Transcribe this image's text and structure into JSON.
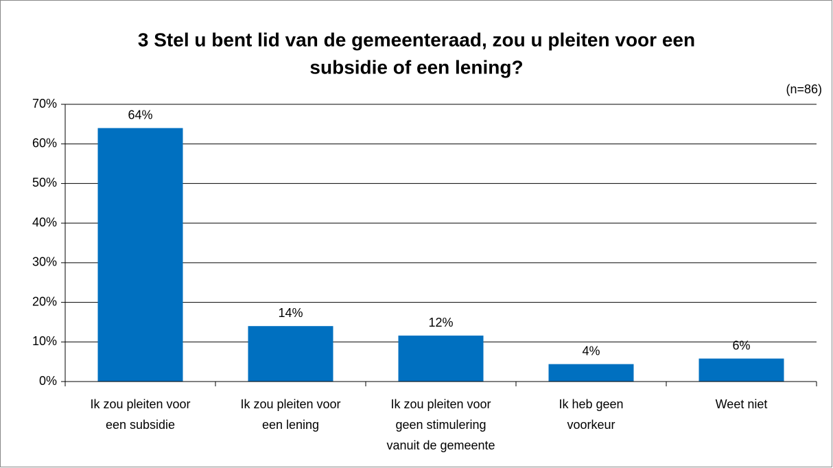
{
  "chart_data": {
    "type": "bar",
    "title": [
      "3 Stel u bent lid van de gemeenteraad, zou u pleiten voor een",
      "subsidie of een lening?"
    ],
    "annotation": "(n=86)",
    "categories": [
      "Ik zou pleiten voor\neen subsidie",
      "Ik zou pleiten voor\neen lening",
      "Ik zou pleiten voor\ngeen stimulering\nvanuit de gemeente",
      "Ik heb geen\nvoorkeur",
      "Weet niet"
    ],
    "values": [
      64,
      14,
      11.6,
      4.4,
      5.8
    ],
    "value_labels": [
      "64%",
      "14%",
      "12%",
      "4%",
      "6%"
    ],
    "color": "#0070c0",
    "ylim": [
      0,
      70
    ],
    "yticks": [
      {
        "value": 0,
        "label": "0%"
      },
      {
        "value": 10,
        "label": "10%"
      },
      {
        "value": 20,
        "label": "20%"
      },
      {
        "value": 30,
        "label": "30%"
      },
      {
        "value": 40,
        "label": "40%"
      },
      {
        "value": 50,
        "label": "50%"
      },
      {
        "value": 60,
        "label": "60%"
      },
      {
        "value": 70,
        "label": "70%"
      }
    ],
    "grid": true
  }
}
